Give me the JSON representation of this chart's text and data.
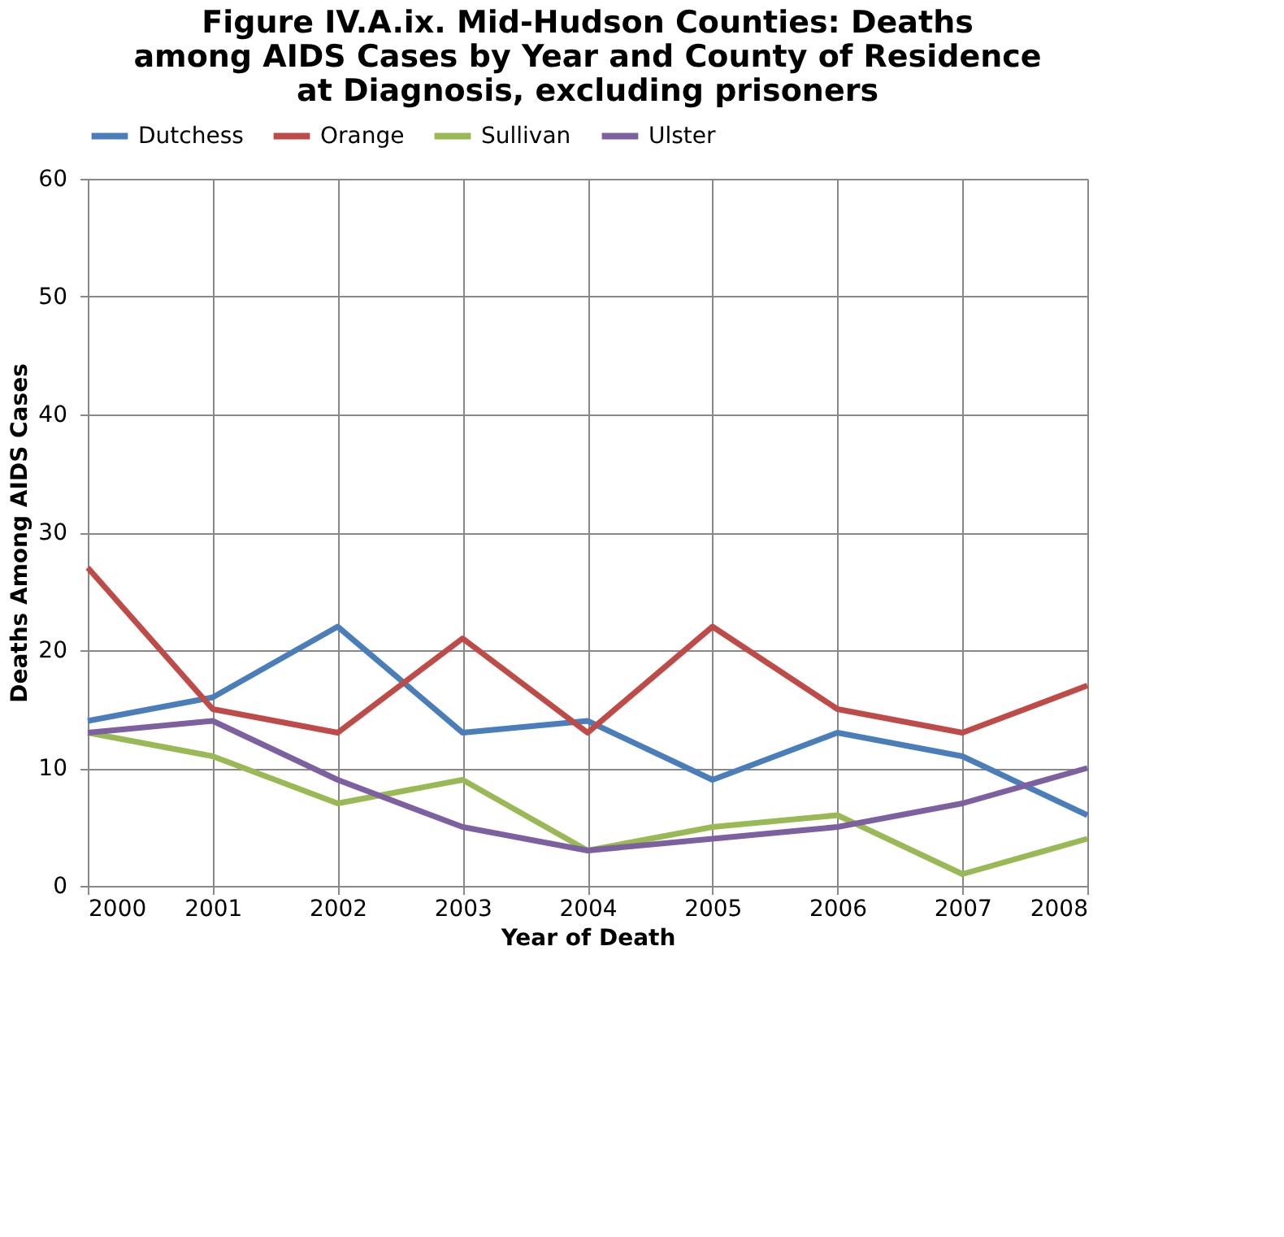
{
  "chart_data": {
    "type": "line",
    "title": "Figure IV.A.ix. Mid-Hudson Counties: Deaths among AIDS Cases by Year and County of Residence at Diagnosis, excluding prisoners",
    "xlabel": "Year of Death",
    "ylabel": "Deaths Among AIDS Cases",
    "categories": [
      "2000",
      "2001",
      "2002",
      "2003",
      "2004",
      "2005",
      "2006",
      "2007",
      "2008"
    ],
    "series": [
      {
        "name": "Dutchess",
        "color": "#4a7ebb",
        "values": [
          14,
          16,
          22,
          13,
          14,
          9,
          13,
          11,
          6
        ]
      },
      {
        "name": "Orange",
        "color": "#be4b48",
        "values": [
          27,
          15,
          13,
          21,
          13,
          22,
          15,
          13,
          17
        ]
      },
      {
        "name": "Sullivan",
        "color": "#98b954",
        "values": [
          13,
          11,
          7,
          9,
          3,
          5,
          6,
          1,
          4
        ]
      },
      {
        "name": "Ulster",
        "color": "#7d60a0",
        "values": [
          13,
          14,
          9,
          5,
          3,
          4,
          5,
          7,
          10
        ]
      }
    ],
    "ylim": [
      0,
      60
    ],
    "yticks": [
      0,
      10,
      20,
      30,
      40,
      50,
      60
    ],
    "grid": true,
    "legend": "top",
    "marker": "none",
    "line_style": "solid"
  }
}
